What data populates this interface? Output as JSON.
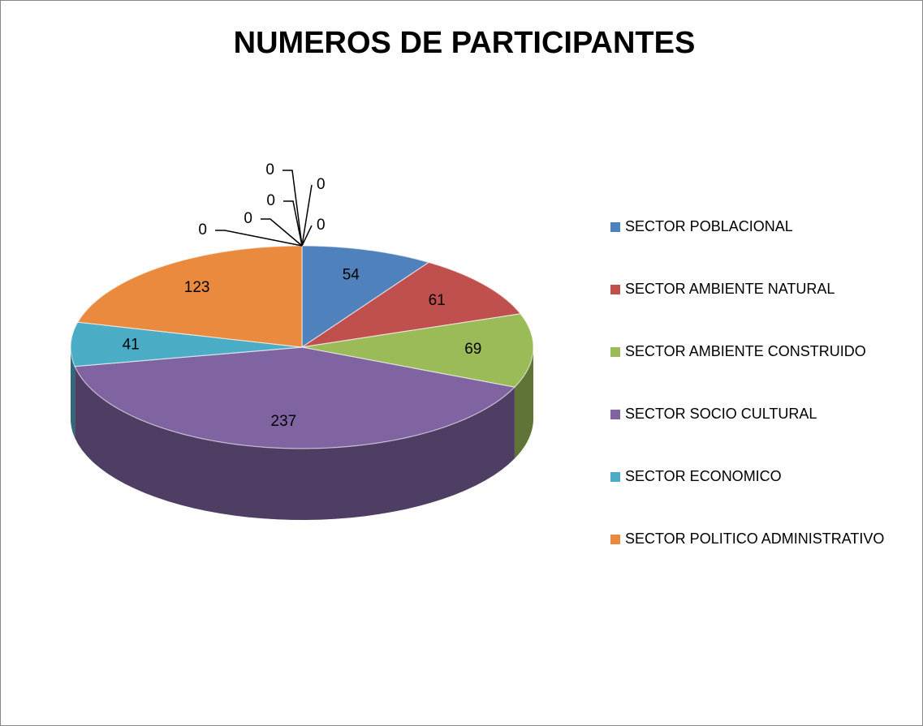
{
  "chart_data": {
    "type": "pie3d",
    "title": "NUMEROS DE PARTICIPANTES",
    "categories": [
      "SECTOR POBLACIONAL",
      "SECTOR AMBIENTE NATURAL",
      "SECTOR AMBIENTE CONSTRUIDO",
      "SECTOR SOCIO CULTURAL",
      "SECTOR ECONOMICO",
      "SECTOR POLITICO ADMINISTRATIVO",
      null,
      null,
      null,
      null,
      null,
      null
    ],
    "values": [
      54,
      61,
      69,
      237,
      41,
      123,
      0,
      0,
      0,
      0,
      0,
      0
    ],
    "colors": [
      "#4f81bd",
      "#c0504d",
      "#9bbb59",
      "#8064a2",
      "#4bacc6",
      "#e98a3f"
    ],
    "legend": "right"
  }
}
